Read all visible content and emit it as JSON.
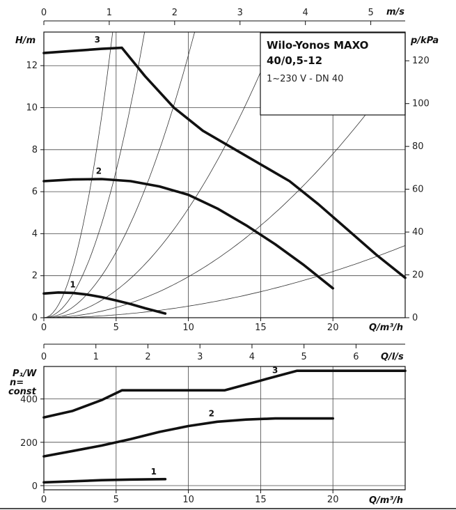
{
  "chart_data": [
    {
      "type": "line",
      "title": "Wilo-Yonos MAXO 40/0,5-12",
      "subtitle": "1~230 V - DN 40",
      "xlabel": "Q/m³/h",
      "ylabel": "H/m",
      "ylabel_right": "p/kPa",
      "xlabel_top": "m/s",
      "xlim": [
        0,
        25
      ],
      "ylim": [
        0,
        13.6
      ],
      "x_ticks": [
        "0",
        "5",
        "10",
        "15",
        "20"
      ],
      "y_ticks": [
        "0",
        "2",
        "4",
        "6",
        "8",
        "10",
        "12"
      ],
      "y_right_ticks": [
        "0",
        "20",
        "40",
        "60",
        "80",
        "100",
        "120"
      ],
      "x_top_ticks": [
        "0",
        "1",
        "2",
        "3",
        "4",
        "5"
      ],
      "x_top_values": [
        0,
        1,
        2,
        3,
        4,
        5
      ],
      "grid": true,
      "series": [
        {
          "name": "1",
          "x": [
            0,
            1,
            2,
            3,
            4,
            5,
            6,
            7,
            8.4
          ],
          "y": [
            1.15,
            1.2,
            1.18,
            1.1,
            0.98,
            0.82,
            0.65,
            0.45,
            0.2
          ]
        },
        {
          "name": "2",
          "x": [
            0,
            2,
            4,
            6,
            8,
            10,
            12,
            14,
            16,
            18,
            20
          ],
          "y": [
            6.5,
            6.58,
            6.6,
            6.5,
            6.25,
            5.85,
            5.2,
            4.4,
            3.5,
            2.5,
            1.4
          ]
        },
        {
          "name": "3",
          "x": [
            0,
            2,
            4,
            5.4,
            7,
            9,
            11,
            13,
            15,
            17,
            19,
            21,
            23,
            25
          ],
          "y": [
            12.6,
            12.7,
            12.8,
            12.85,
            11.5,
            10,
            8.9,
            8.1,
            7.3,
            6.5,
            5.4,
            4.2,
            3.0,
            1.9
          ]
        }
      ],
      "system_curves": [
        {
          "k": 0.6
        },
        {
          "k": 0.28
        },
        {
          "k": 0.125
        },
        {
          "k": 0.052
        },
        {
          "k": 0.0195
        },
        {
          "k": 0.0055
        }
      ]
    },
    {
      "type": "line",
      "xlabel": "Q/m³/h",
      "ylabel": "P₁/W",
      "ylabel_lines": [
        "P₁/W",
        "n=",
        "const"
      ],
      "xlabel_top": "Q/l/s",
      "xlim": [
        0,
        25
      ],
      "ylim": [
        0,
        550
      ],
      "x_ticks": [
        "0",
        "5",
        "10",
        "15",
        "20"
      ],
      "y_ticks": [
        "0",
        "200",
        "400"
      ],
      "x_top_ticks": [
        "0",
        "1",
        "2",
        "3",
        "4",
        "5",
        "6"
      ],
      "x_top_values": [
        0,
        1,
        2,
        3,
        4,
        5,
        6
      ],
      "grid": true,
      "series": [
        {
          "name": "1",
          "x": [
            0,
            2,
            4,
            6,
            8.4
          ],
          "y": [
            15,
            20,
            25,
            28,
            30
          ]
        },
        {
          "name": "2",
          "x": [
            0,
            2,
            4,
            6,
            8,
            10,
            12,
            14,
            16,
            18,
            20
          ],
          "y": [
            135,
            160,
            185,
            215,
            248,
            275,
            295,
            305,
            310,
            310,
            310
          ]
        },
        {
          "name": "3",
          "x": [
            0,
            2,
            4,
            5.4,
            8,
            10,
            12.5,
            15,
            17.5,
            20,
            22.5,
            25
          ],
          "y": [
            315,
            345,
            395,
            440,
            440,
            440,
            440,
            485,
            530,
            530,
            530,
            530
          ]
        }
      ]
    }
  ]
}
